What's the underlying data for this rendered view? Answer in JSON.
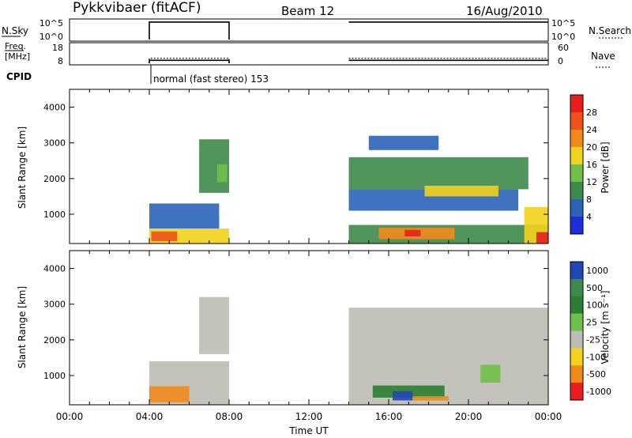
{
  "header": {
    "station": "Pykkvibaer (fitACF)",
    "beam": "Beam 12",
    "date": "16/Aug/2010"
  },
  "strip_labels": {
    "nsky": "N.Sky",
    "nsky_tick_hi": "10^5",
    "nsky_tick_lo": "10^0",
    "nsearch": "N.Search",
    "nsearch_tick_hi": "10^5",
    "nsearch_tick_lo": "10^0",
    "freq_line1": "Freq.",
    "freq_line2": "[MHz]",
    "freq_tick_hi": "18",
    "freq_tick_lo": "8",
    "nave": "Nave",
    "nave_tick_hi": "60",
    "nave_tick_lo": "0",
    "cpid": "CPID",
    "cpid_text": "normal (fast stereo) 153"
  },
  "axes": {
    "ylabel": "Slant Range [km]",
    "xlabel": "Time UT",
    "xticks": [
      "00:00",
      "04:00",
      "08:00",
      "12:00",
      "16:00",
      "20:00",
      "00:00"
    ],
    "yticks": [
      "1000",
      "2000",
      "3000",
      "4000"
    ]
  },
  "colorbars": {
    "power": {
      "label": "Power [dB]",
      "ticks": [
        "4",
        "8",
        "12",
        "16",
        "20",
        "24",
        "28"
      ],
      "colors": [
        "#1f2fd8",
        "#2a63b8",
        "#3f8a4a",
        "#6fc04a",
        "#f2d21c",
        "#f28a1a",
        "#f0501a",
        "#e81e1e"
      ]
    },
    "velocity": {
      "label": "Velocity [m s⁻¹]",
      "ticks": [
        "1000",
        "500",
        "100",
        "25",
        "-25",
        "-100",
        "-500",
        "-1000"
      ],
      "colors": [
        "#2246b8",
        "#3f8a4a",
        "#2e7d32",
        "#6fc04a",
        "#bdbdb5",
        "#f2d21c",
        "#f28a1a",
        "#e81e1e"
      ]
    }
  },
  "chart_data": [
    {
      "type": "line",
      "panel": "N.Sky / N.Search",
      "x": [
        "00:00",
        "04:00",
        "04:00",
        "08:00",
        "08:00",
        "14:00",
        "14:00",
        "24:00"
      ],
      "series": [
        {
          "name": "N.Sky",
          "values": [
            null,
            0,
            4.6,
            4.6,
            0,
            null,
            4.6,
            4.6
          ]
        }
      ]
    },
    {
      "type": "line",
      "panel": "Freq. / Nave",
      "x": [
        "00:00",
        "04:00",
        "04:00",
        "08:00",
        "08:00",
        "14:00",
        "14:00",
        "24:00"
      ],
      "series": [
        {
          "name": "Freq.",
          "values": [
            null,
            8,
            9.6,
            9.6,
            8,
            null,
            9.6,
            9.6
          ]
        },
        {
          "name": "Nave",
          "values": [
            null,
            0,
            18,
            18,
            0,
            null,
            18,
            18
          ]
        }
      ]
    },
    {
      "type": "heatmap",
      "panel": "Power",
      "xlim": [
        0,
        24
      ],
      "ylim": [
        180,
        4500
      ],
      "regions": [
        {
          "t": [
            4.0,
            8.0
          ],
          "r": [
            180,
            600
          ],
          "level": 4
        },
        {
          "t": [
            4.1,
            5.4
          ],
          "r": [
            250,
            520
          ],
          "level": 6
        },
        {
          "t": [
            4.0,
            7.5
          ],
          "r": [
            600,
            1300
          ],
          "level": 1
        },
        {
          "t": [
            6.5,
            8.0
          ],
          "r": [
            1600,
            3100
          ],
          "level": 2
        },
        {
          "t": [
            7.4,
            7.9
          ],
          "r": [
            1900,
            2400
          ],
          "level": 3
        },
        {
          "t": [
            14.0,
            24.0
          ],
          "r": [
            180,
            700
          ],
          "level": 2
        },
        {
          "t": [
            15.5,
            19.3
          ],
          "r": [
            300,
            620
          ],
          "level": 5
        },
        {
          "t": [
            16.8,
            17.6
          ],
          "r": [
            380,
            560
          ],
          "level": 7
        },
        {
          "t": [
            14.0,
            22.5
          ],
          "r": [
            1100,
            1700
          ],
          "level": 1
        },
        {
          "t": [
            14.0,
            23.0
          ],
          "r": [
            1700,
            2600
          ],
          "level": 2
        },
        {
          "t": [
            17.8,
            21.5
          ],
          "r": [
            1500,
            1800
          ],
          "level": 4
        },
        {
          "t": [
            22.8,
            24.0
          ],
          "r": [
            180,
            1200
          ],
          "level": 4
        },
        {
          "t": [
            23.4,
            24.0
          ],
          "r": [
            180,
            500
          ],
          "level": 7
        },
        {
          "t": [
            15.0,
            18.5
          ],
          "r": [
            2800,
            3200
          ],
          "level": 1
        }
      ]
    },
    {
      "type": "heatmap",
      "panel": "Velocity",
      "xlim": [
        0,
        24
      ],
      "ylim": [
        180,
        4500
      ],
      "regions": [
        {
          "t": [
            4.0,
            8.0
          ],
          "r": [
            180,
            1400
          ],
          "level": 4
        },
        {
          "t": [
            4.0,
            6.0
          ],
          "r": [
            250,
            700
          ],
          "level": 6
        },
        {
          "t": [
            6.5,
            8.0
          ],
          "r": [
            1600,
            3200
          ],
          "level": 4
        },
        {
          "t": [
            14.0,
            24.0
          ],
          "r": [
            180,
            2900
          ],
          "level": 4
        },
        {
          "t": [
            15.2,
            18.8
          ],
          "r": [
            380,
            720
          ],
          "level": 2
        },
        {
          "t": [
            16.2,
            17.2
          ],
          "r": [
            300,
            560
          ],
          "level": 0
        },
        {
          "t": [
            17.2,
            19.0
          ],
          "r": [
            300,
            420
          ],
          "level": 6
        },
        {
          "t": [
            20.6,
            21.6
          ],
          "r": [
            800,
            1300
          ],
          "level": 3
        }
      ]
    }
  ]
}
